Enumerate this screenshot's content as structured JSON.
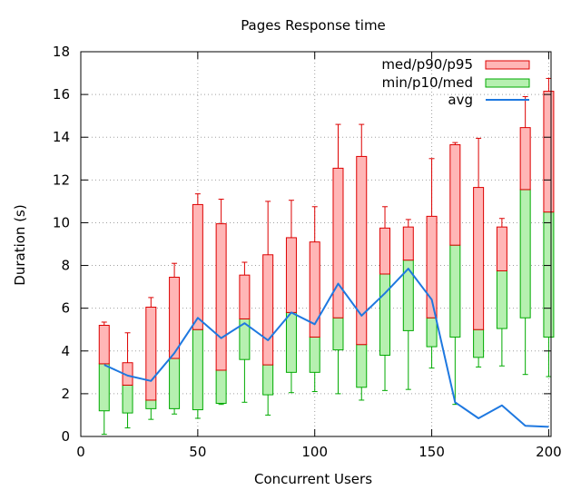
{
  "chart_data": {
    "type": "candlestick",
    "title": "Pages Response time",
    "xlabel": "Concurrent Users",
    "ylabel": "Duration (s)",
    "xlim": [
      0,
      201
    ],
    "ylim": [
      0,
      18
    ],
    "xticks": [
      0,
      50,
      100,
      150,
      200
    ],
    "yticks": [
      0,
      2,
      4,
      6,
      8,
      10,
      12,
      14,
      16,
      18
    ],
    "grid": true,
    "legend_position": "top-right",
    "series": [
      {
        "name": "med/p90/p95",
        "color_fill": "#ffb6b6",
        "color_line": "#dd0000"
      },
      {
        "name": "min/p10/med",
        "color_fill": "#b6f0b0",
        "color_line": "#00aa00"
      },
      {
        "name": "avg",
        "color_line": "#1e78e0"
      }
    ],
    "points": [
      {
        "x": 10,
        "min": 0.1,
        "p10": 1.2,
        "med": 3.4,
        "p90": 5.2,
        "p95": 5.35,
        "avg": 3.35
      },
      {
        "x": 20,
        "min": 0.4,
        "p10": 1.1,
        "med": 2.4,
        "p90": 3.45,
        "p95": 4.85,
        "avg": 2.85
      },
      {
        "x": 30,
        "min": 0.8,
        "p10": 1.3,
        "med": 1.7,
        "p90": 6.05,
        "p95": 6.5,
        "avg": 2.6
      },
      {
        "x": 40,
        "min": 1.05,
        "p10": 1.3,
        "med": 3.65,
        "p90": 7.45,
        "p95": 8.1,
        "avg": 3.9
      },
      {
        "x": 50,
        "min": 0.85,
        "p10": 1.25,
        "med": 5.0,
        "p90": 10.85,
        "p95": 11.35,
        "avg": 5.55
      },
      {
        "x": 60,
        "min": 1.5,
        "p10": 1.55,
        "med": 3.1,
        "p90": 9.95,
        "p95": 11.1,
        "avg": 4.6
      },
      {
        "x": 70,
        "min": 1.6,
        "p10": 3.6,
        "med": 5.5,
        "p90": 7.55,
        "p95": 8.15,
        "avg": 5.3
      },
      {
        "x": 80,
        "min": 1.0,
        "p10": 1.95,
        "med": 3.35,
        "p90": 8.5,
        "p95": 11.0,
        "avg": 4.5
      },
      {
        "x": 90,
        "min": 2.05,
        "p10": 3.0,
        "med": 5.8,
        "p90": 9.3,
        "p95": 11.05,
        "avg": 5.8
      },
      {
        "x": 100,
        "min": 2.1,
        "p10": 3.0,
        "med": 4.65,
        "p90": 9.1,
        "p95": 10.75,
        "avg": 5.25
      },
      {
        "x": 110,
        "min": 2.0,
        "p10": 4.05,
        "med": 5.55,
        "p90": 12.55,
        "p95": 14.6,
        "avg": 7.15
      },
      {
        "x": 120,
        "min": 1.7,
        "p10": 2.3,
        "med": 4.3,
        "p90": 13.1,
        "p95": 14.6,
        "avg": 5.65
      },
      {
        "x": 130,
        "min": 2.15,
        "p10": 3.8,
        "med": 7.6,
        "p90": 9.75,
        "p95": 10.75,
        "avg": 6.7
      },
      {
        "x": 140,
        "min": 2.2,
        "p10": 4.95,
        "med": 8.25,
        "p90": 9.8,
        "p95": 10.15,
        "avg": 7.85
      },
      {
        "x": 150,
        "min": 3.2,
        "p10": 4.2,
        "med": 5.55,
        "p90": 10.3,
        "p95": 13.0,
        "avg": 6.4
      },
      {
        "x": 160,
        "min": 1.5,
        "p10": 4.65,
        "med": 8.95,
        "p90": 13.65,
        "p95": 13.75,
        "avg": 1.6
      },
      {
        "x": 170,
        "min": 3.25,
        "p10": 3.7,
        "med": 5.0,
        "p90": 11.65,
        "p95": 13.95,
        "avg": 0.85
      },
      {
        "x": 180,
        "min": 3.3,
        "p10": 5.05,
        "med": 7.75,
        "p90": 9.8,
        "p95": 10.2,
        "avg": 1.45
      },
      {
        "x": 190,
        "min": 2.9,
        "p10": 5.55,
        "med": 11.55,
        "p90": 14.45,
        "p95": 15.9,
        "avg": 0.5
      },
      {
        "x": 200,
        "min": 2.8,
        "p10": 4.65,
        "med": 10.5,
        "p90": 16.15,
        "p95": 16.75,
        "avg": 0.45
      }
    ]
  }
}
